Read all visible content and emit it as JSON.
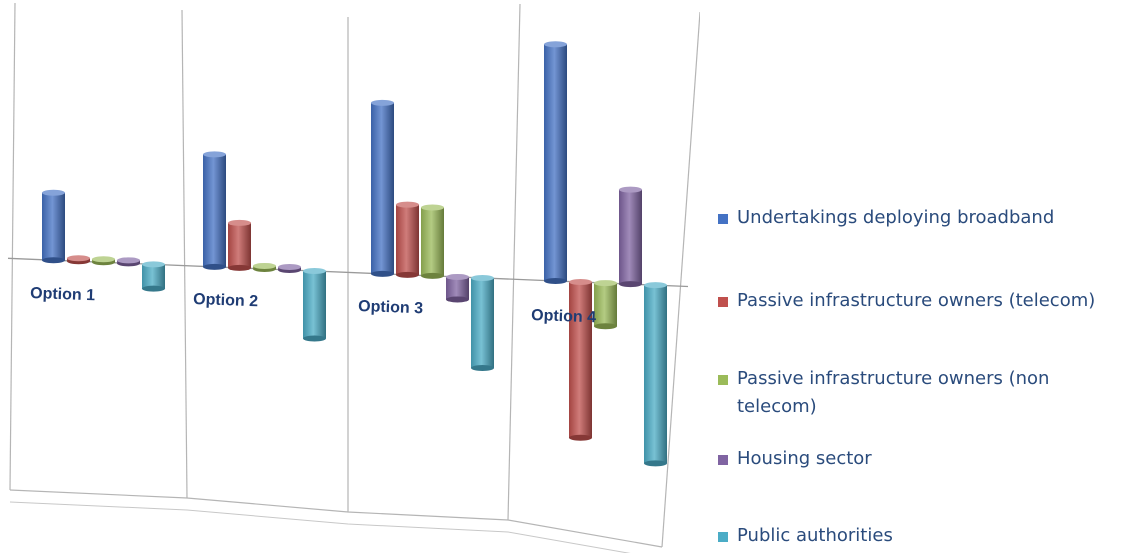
{
  "chart_data": {
    "type": "bar",
    "categories": [
      "Option 1",
      "Option 2",
      "Option 3",
      "Option 4"
    ],
    "series": [
      {
        "name": "Undertakings deploying broadband",
        "color": "#4472c4",
        "values": [
          75,
          125,
          190,
          263
        ]
      },
      {
        "name": "Passive infrastructure owners (telecom)",
        "color": "#c0504d",
        "values": [
          1,
          50,
          78,
          -173
        ]
      },
      {
        "name": "Passive infrastructure owners (non telecom)",
        "color": "#9bbb59",
        "values": [
          1,
          2,
          76,
          -48
        ]
      },
      {
        "name": "Housing sector",
        "color": "#8064a2",
        "values": [
          1,
          2,
          -25,
          105
        ]
      },
      {
        "name": "Public authorities",
        "color": "#4bacc6",
        "values": [
          -27,
          -75,
          -100,
          -198
        ]
      }
    ],
    "title": "",
    "xlabel": "",
    "ylabel": "",
    "grid": true,
    "legend_position": "right"
  }
}
